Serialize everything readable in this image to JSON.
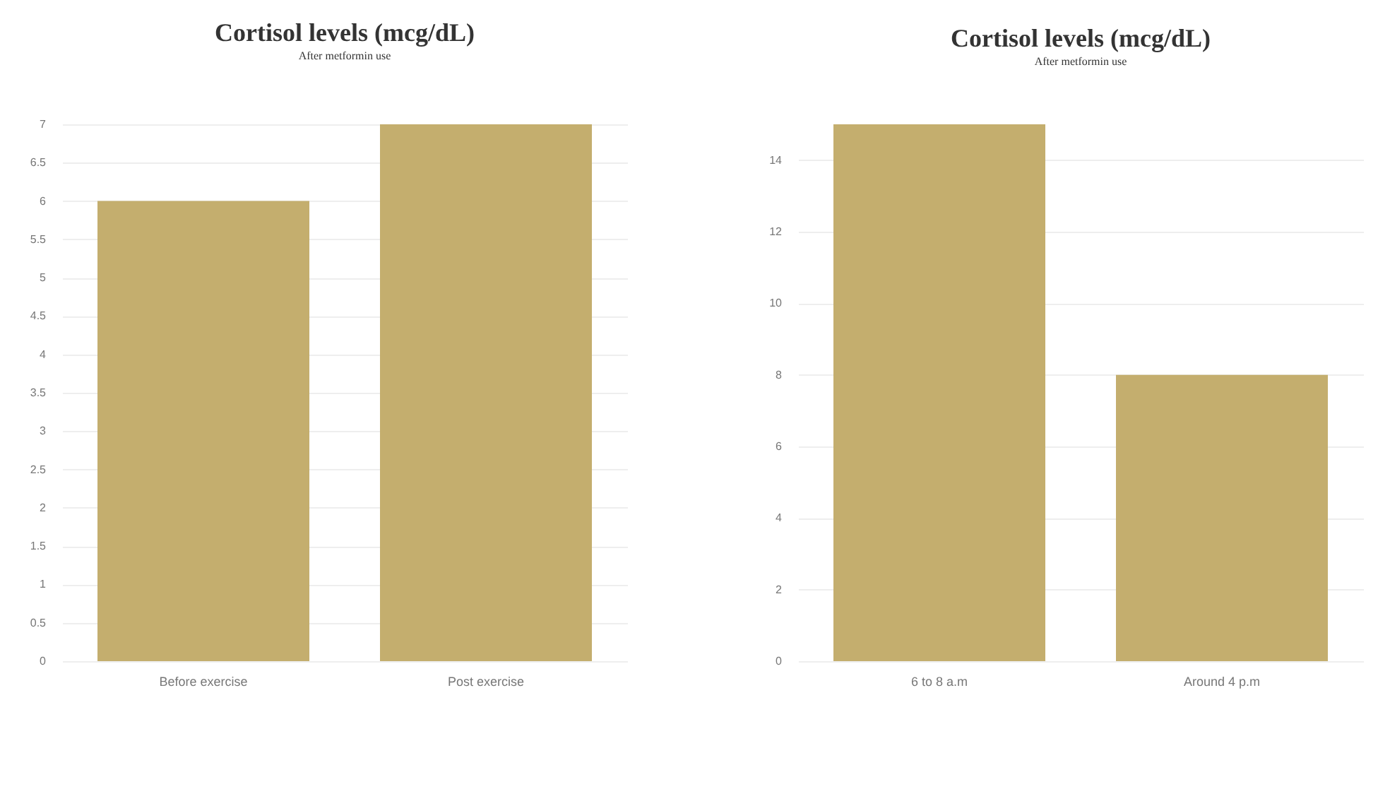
{
  "chart_data": [
    {
      "type": "bar",
      "title": "Cortisol levels  (mcg/dL)",
      "subtitle": "After metformin use",
      "categories": [
        "Before exercise",
        "Post exercise"
      ],
      "values": [
        6,
        7
      ],
      "color": "#c4ae6e",
      "ylim": [
        0,
        7
      ],
      "yticks": [
        0,
        0.5,
        1,
        1.5,
        2,
        2.5,
        3,
        3.5,
        4,
        4.5,
        5,
        5.5,
        6,
        6.5,
        7
      ],
      "grid": "y"
    },
    {
      "type": "bar",
      "title": "Cortisol levels  (mcg/dL)",
      "subtitle": "After metformin use",
      "categories": [
        "6 to 8 a.m",
        "Around 4 p.m"
      ],
      "values": [
        15,
        8
      ],
      "color": "#c4ae6e",
      "ylim": [
        0,
        15
      ],
      "yticks": [
        0,
        2,
        4,
        6,
        8,
        10,
        12,
        14
      ],
      "grid": "y"
    }
  ]
}
